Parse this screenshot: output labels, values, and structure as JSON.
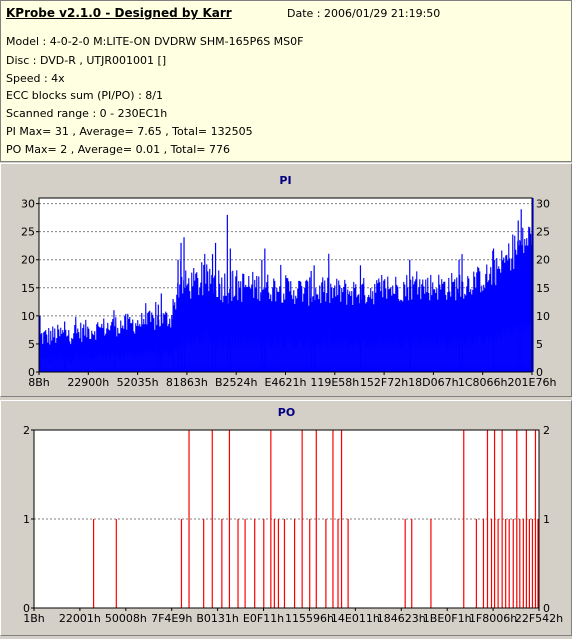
{
  "header": {
    "title": "KProbe v2.1.0 - Designed by Karr",
    "date": "Date : 2006/01/29 21:19:50",
    "lines": [
      "Model : 4-0-2-0 M:LITE-ON DVDRW SHM-165P6S MS0F",
      "Disc : DVD-R , UTJR001001 []",
      "Speed : 4x",
      "ECC blocks sum (PI/PO) : 8/1",
      "Scanned range : 0 - 230EC1h",
      "PI Max= 31 , Average= 7.65 , Total= 132505",
      "PO Max= 2 , Average= 0.01 , Total= 776"
    ]
  },
  "colors": {
    "pi_fill": "#0000ff",
    "po_line": "#ff0000",
    "panel_bg": "#d4d0c8",
    "plot_bg": "#ffffff",
    "grid": "#808080",
    "title": "#000080"
  },
  "chart_data": [
    {
      "type": "bar",
      "title": "PI",
      "ylim": [
        0,
        31
      ],
      "yticks": [
        0,
        5,
        10,
        15,
        20,
        25,
        30
      ],
      "xticks": [
        "8Bh",
        "22900h",
        "52035h",
        "81863h",
        "B2524h",
        "E4621h",
        "119E58h",
        "152F72h",
        "18D067h",
        "1C8066h",
        "201E76h"
      ],
      "grid": true,
      "profile": [
        {
          "x": 0.0,
          "base": 6,
          "spread": 3,
          "spikes": [
            10
          ]
        },
        {
          "x": 0.05,
          "base": 6.5,
          "spread": 3,
          "spikes": [
            9
          ]
        },
        {
          "x": 0.15,
          "base": 8,
          "spread": 3,
          "spikes": [
            11
          ]
        },
        {
          "x": 0.24,
          "base": 9,
          "spread": 3,
          "spikes": [
            12,
            14
          ]
        },
        {
          "x": 0.27,
          "base": 9.5,
          "spread": 3,
          "spikes": [
            13
          ]
        },
        {
          "x": 0.28,
          "base": 15,
          "spread": 4,
          "spikes": [
            20,
            23,
            24
          ]
        },
        {
          "x": 0.35,
          "base": 16,
          "spread": 5,
          "spikes": [
            21,
            23
          ]
        },
        {
          "x": 0.38,
          "base": 15,
          "spread": 5,
          "spikes": [
            28,
            22
          ]
        },
        {
          "x": 0.45,
          "base": 15,
          "spread": 4,
          "spikes": [
            20,
            22
          ]
        },
        {
          "x": 0.55,
          "base": 14,
          "spread": 4,
          "spikes": [
            18,
            19
          ]
        },
        {
          "x": 0.65,
          "base": 14,
          "spread": 4,
          "spikes": [
            19
          ]
        },
        {
          "x": 0.75,
          "base": 15,
          "spread": 4,
          "spikes": [
            20
          ]
        },
        {
          "x": 0.85,
          "base": 15,
          "spread": 4,
          "spikes": [
            20,
            21
          ]
        },
        {
          "x": 0.92,
          "base": 17,
          "spread": 4,
          "spikes": [
            22
          ]
        },
        {
          "x": 0.97,
          "base": 22,
          "spread": 5,
          "spikes": [
            27,
            29
          ]
        },
        {
          "x": 1.0,
          "base": 24,
          "spread": 5,
          "spikes": [
            31
          ]
        }
      ]
    },
    {
      "type": "bar",
      "title": "PO",
      "ylim": [
        0,
        2
      ],
      "yticks": [
        0,
        1,
        2
      ],
      "xticks": [
        "1Bh",
        "22001h",
        "50008h",
        "7F4E9h",
        "B0131h",
        "E0F11h",
        "115596h",
        "14E011h",
        "184623h",
        "1BE0F1h",
        "1F8006h",
        "22F542h"
      ],
      "grid": true,
      "events": [
        {
          "x": 0.118,
          "v": 1
        },
        {
          "x": 0.163,
          "v": 1
        },
        {
          "x": 0.292,
          "v": 1
        },
        {
          "x": 0.307,
          "v": 2
        },
        {
          "x": 0.336,
          "v": 1
        },
        {
          "x": 0.353,
          "v": 2
        },
        {
          "x": 0.372,
          "v": 1
        },
        {
          "x": 0.387,
          "v": 2
        },
        {
          "x": 0.404,
          "v": 1
        },
        {
          "x": 0.418,
          "v": 1
        },
        {
          "x": 0.437,
          "v": 1
        },
        {
          "x": 0.455,
          "v": 1
        },
        {
          "x": 0.469,
          "v": 2
        },
        {
          "x": 0.476,
          "v": 1
        },
        {
          "x": 0.484,
          "v": 1
        },
        {
          "x": 0.496,
          "v": 1
        },
        {
          "x": 0.516,
          "v": 1
        },
        {
          "x": 0.531,
          "v": 2
        },
        {
          "x": 0.546,
          "v": 1
        },
        {
          "x": 0.559,
          "v": 2
        },
        {
          "x": 0.578,
          "v": 1
        },
        {
          "x": 0.592,
          "v": 2
        },
        {
          "x": 0.602,
          "v": 1
        },
        {
          "x": 0.609,
          "v": 2
        },
        {
          "x": 0.622,
          "v": 1
        },
        {
          "x": 0.735,
          "v": 1
        },
        {
          "x": 0.748,
          "v": 1
        },
        {
          "x": 0.786,
          "v": 1
        },
        {
          "x": 0.851,
          "v": 2
        },
        {
          "x": 0.876,
          "v": 1
        },
        {
          "x": 0.89,
          "v": 1
        },
        {
          "x": 0.898,
          "v": 2
        },
        {
          "x": 0.906,
          "v": 1
        },
        {
          "x": 0.912,
          "v": 2
        },
        {
          "x": 0.919,
          "v": 1
        },
        {
          "x": 0.927,
          "v": 2
        },
        {
          "x": 0.934,
          "v": 1
        },
        {
          "x": 0.941,
          "v": 1
        },
        {
          "x": 0.949,
          "v": 1
        },
        {
          "x": 0.956,
          "v": 2
        },
        {
          "x": 0.962,
          "v": 1
        },
        {
          "x": 0.969,
          "v": 1
        },
        {
          "x": 0.975,
          "v": 2
        },
        {
          "x": 0.981,
          "v": 1
        },
        {
          "x": 0.987,
          "v": 1
        },
        {
          "x": 0.993,
          "v": 2
        },
        {
          "x": 0.998,
          "v": 1
        }
      ]
    }
  ]
}
